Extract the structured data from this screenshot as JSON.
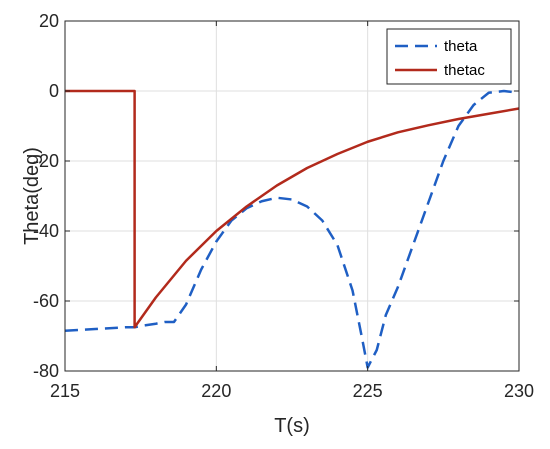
{
  "chart_data": {
    "type": "line",
    "title": "",
    "xlabel": "T(s)",
    "ylabel": "Theta(deg)",
    "xlim": [
      215,
      230
    ],
    "ylim": [
      -80,
      20
    ],
    "xticks": [
      215,
      220,
      225,
      230
    ],
    "yticks": [
      20,
      0,
      -20,
      -40,
      -60,
      -80
    ],
    "xtick_labels": [
      "215",
      "220",
      "225",
      "230"
    ],
    "ytick_labels": [
      "20",
      "0",
      "-20",
      "-40",
      "-60",
      "-80"
    ],
    "grid": true,
    "legend_position": "top-right",
    "series": [
      {
        "name": "theta",
        "color": "#1f5fc4",
        "style": "dashed",
        "points": [
          [
            215,
            -68.5
          ],
          [
            216,
            -68.0
          ],
          [
            217,
            -67.5
          ],
          [
            217.3,
            -67.5
          ],
          [
            217.6,
            -67.0
          ],
          [
            218.0,
            -66.5
          ],
          [
            218.3,
            -66.0
          ],
          [
            218.6,
            -66.0
          ],
          [
            219.0,
            -61.0
          ],
          [
            219.5,
            -51.0
          ],
          [
            220.0,
            -43.0
          ],
          [
            220.5,
            -37.0
          ],
          [
            221.0,
            -33.5
          ],
          [
            221.5,
            -31.5
          ],
          [
            222.0,
            -30.5
          ],
          [
            222.5,
            -31.0
          ],
          [
            223.0,
            -33.0
          ],
          [
            223.5,
            -37.0
          ],
          [
            224.0,
            -44.0
          ],
          [
            224.5,
            -57.0
          ],
          [
            224.8,
            -70.0
          ],
          [
            225.0,
            -79.0
          ],
          [
            225.3,
            -74.0
          ],
          [
            225.6,
            -64.0
          ],
          [
            226.0,
            -56.0
          ],
          [
            226.5,
            -44.0
          ],
          [
            227.0,
            -32.0
          ],
          [
            227.5,
            -20.0
          ],
          [
            228.0,
            -10.0
          ],
          [
            228.5,
            -4.0
          ],
          [
            229.0,
            -0.5
          ],
          [
            229.5,
            0.0
          ],
          [
            230,
            -0.5
          ]
        ]
      },
      {
        "name": "thetac",
        "color": "#b22a1c",
        "style": "solid",
        "points": [
          [
            215,
            0
          ],
          [
            217.3,
            0
          ],
          [
            217.3,
            -67.5
          ],
          [
            218,
            -59.0
          ],
          [
            219,
            -48.5
          ],
          [
            220,
            -40.0
          ],
          [
            221,
            -33.0
          ],
          [
            222,
            -27.0
          ],
          [
            223,
            -22.0
          ],
          [
            224,
            -18.0
          ],
          [
            225,
            -14.5
          ],
          [
            226,
            -11.8
          ],
          [
            227,
            -9.8
          ],
          [
            228,
            -8.0
          ],
          [
            229,
            -6.5
          ],
          [
            230,
            -5.0
          ]
        ]
      }
    ]
  }
}
